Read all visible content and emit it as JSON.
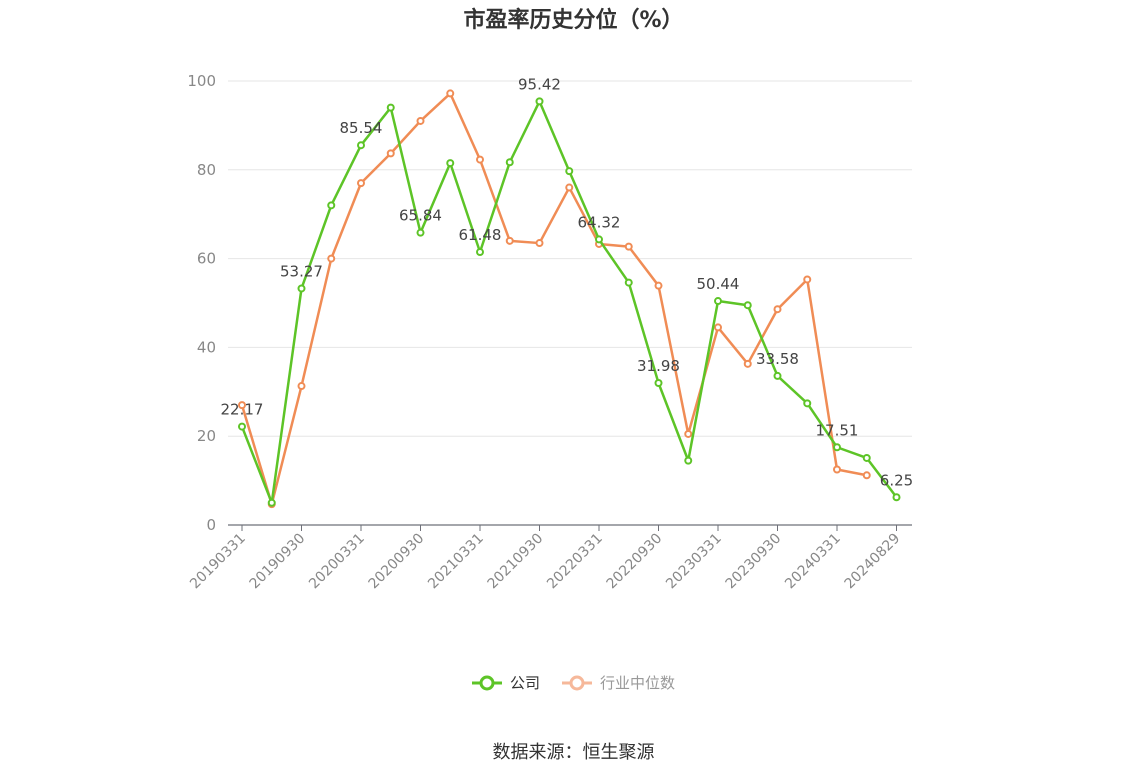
{
  "chart_data": {
    "type": "line",
    "title": "市盈率历史分位（%）",
    "source": "数据来源：恒生聚源",
    "ylim": [
      0,
      100
    ],
    "yticks": [
      0,
      20,
      40,
      60,
      80,
      100
    ],
    "x": [
      "20190331",
      "20190630",
      "20190930",
      "20191231",
      "20200331",
      "20200630",
      "20200930",
      "20201231",
      "20210331",
      "20210630",
      "20210930",
      "20211231",
      "20220331",
      "20220630",
      "20220930",
      "20221231",
      "20230331",
      "20230630",
      "20230930",
      "20231231",
      "20240331",
      "20240630",
      "20240829"
    ],
    "xtick_labels": [
      "20190331",
      "20190930",
      "20200331",
      "20200930",
      "20210331",
      "20210930",
      "20220331",
      "20220930",
      "20230331",
      "20230930",
      "20240331",
      "20240829"
    ],
    "xtick_indices": [
      0,
      2,
      4,
      6,
      8,
      10,
      12,
      14,
      16,
      18,
      20,
      22
    ],
    "grid": true,
    "legend_position": "bottom",
    "series": [
      {
        "name": "公司",
        "color": "#5dc427",
        "values": [
          22.17,
          5.0,
          53.27,
          72.0,
          85.54,
          94.0,
          65.84,
          81.5,
          61.48,
          81.7,
          95.42,
          79.7,
          64.32,
          54.6,
          31.98,
          14.5,
          50.44,
          49.5,
          33.58,
          27.4,
          17.51,
          15.1,
          6.25
        ],
        "labels": {
          "0": "22.17",
          "2": "53.27",
          "4": "85.54",
          "6": "65.84",
          "8": "61.48",
          "10": "95.42",
          "12": "64.32",
          "14": "31.98",
          "16": "50.44",
          "18": "33.58",
          "20": "17.51",
          "22": "6.25"
        }
      },
      {
        "name": "行业中位数",
        "color": "#f08c55",
        "values": [
          27.0,
          4.7,
          31.3,
          60.0,
          77.0,
          83.7,
          91.0,
          97.2,
          82.3,
          64.0,
          63.5,
          76.0,
          63.3,
          62.7,
          53.9,
          20.5,
          44.5,
          36.3,
          48.6,
          55.3,
          12.5,
          11.2,
          null
        ]
      }
    ]
  }
}
